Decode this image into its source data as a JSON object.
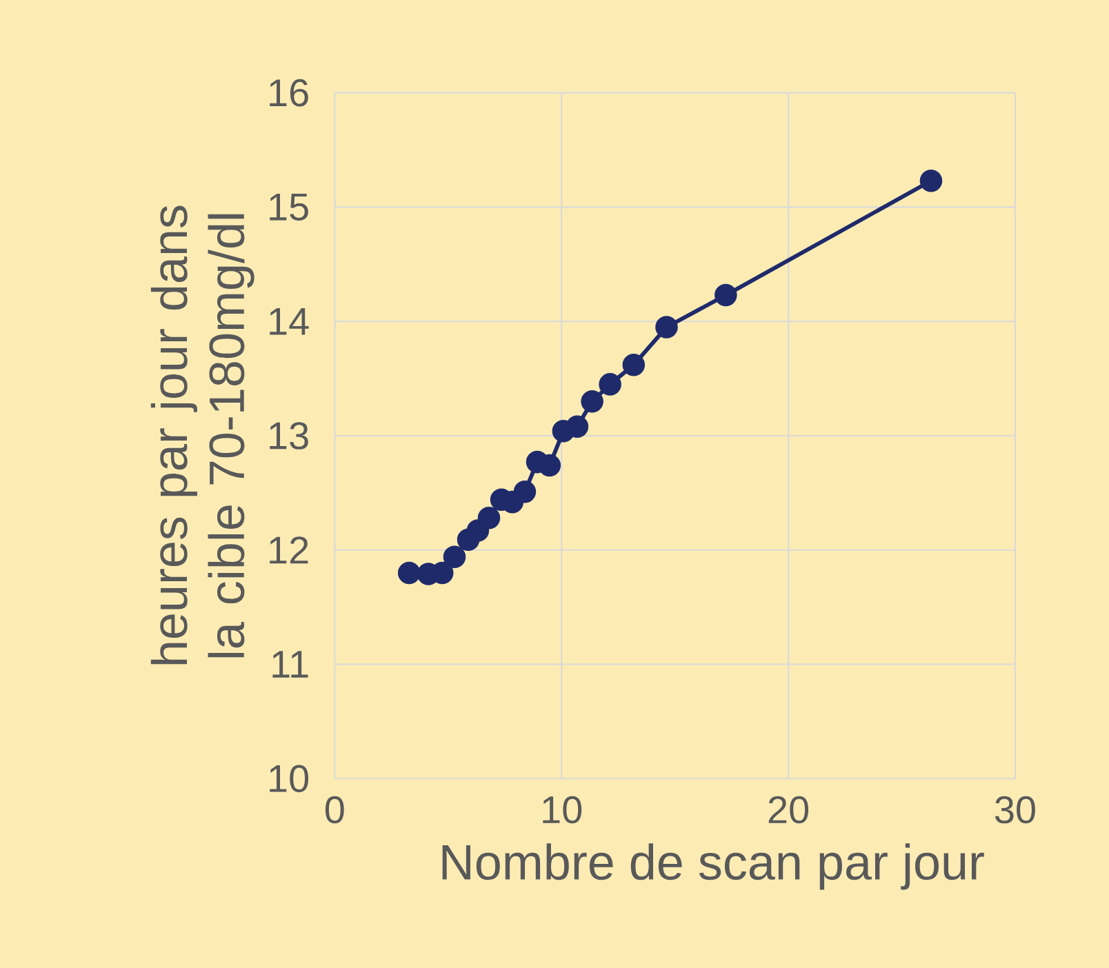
{
  "chart_data": {
    "type": "line",
    "xlabel": "Nombre de scan par jour",
    "ylabel": "heures par jour  dans la cible 70-180mg/dl",
    "x": [
      3.28,
      4.13,
      4.74,
      5.28,
      5.89,
      6.31,
      6.8,
      7.35,
      7.83,
      8.38,
      8.93,
      9.47,
      10.08,
      10.69,
      11.35,
      12.14,
      13.18,
      14.63,
      17.24,
      26.29
    ],
    "series": [
      {
        "color": "#1f2a6b",
        "values": [
          11.8,
          11.79,
          11.8,
          11.94,
          12.09,
          12.17,
          12.28,
          12.44,
          12.42,
          12.51,
          12.77,
          12.74,
          13.04,
          13.08,
          13.3,
          13.45,
          13.62,
          13.95,
          14.23,
          15.23
        ]
      }
    ],
    "xlim": [
      0,
      30
    ],
    "ylim": [
      10,
      16
    ],
    "xticks": [
      0,
      10,
      20,
      30
    ],
    "yticks": [
      10,
      11,
      12,
      13,
      14,
      15,
      16
    ],
    "grid": true,
    "marker": "circle",
    "line_style": "solid"
  }
}
